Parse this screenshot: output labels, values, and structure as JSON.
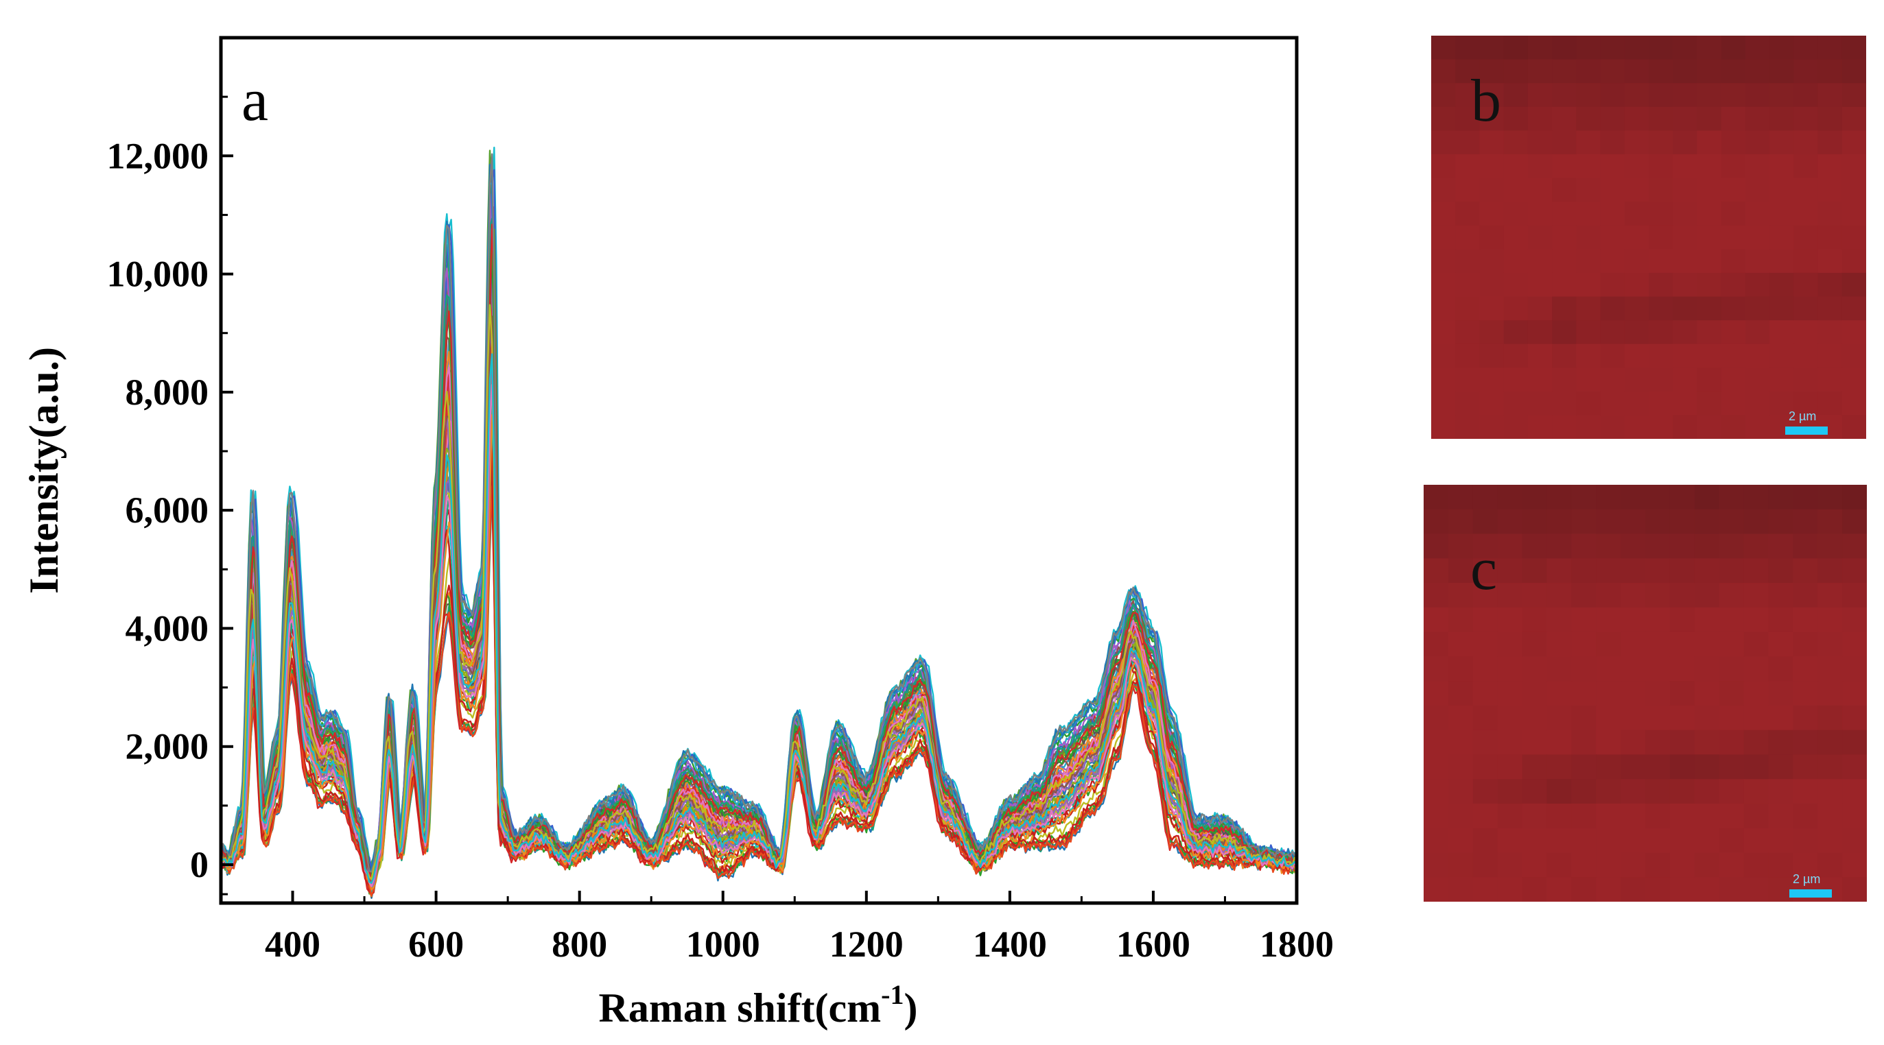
{
  "chart_data": {
    "type": "line",
    "panel_label": "a",
    "xlabel": "Raman shift(cm",
    "xlabel_sup": "-1",
    "xlabel_tail": ")",
    "ylabel": "Intensity(a.u.)",
    "xlim": [
      300,
      1800
    ],
    "ylim": [
      -650,
      14000
    ],
    "x_ticks": [
      400,
      600,
      800,
      1000,
      1200,
      1400,
      1600,
      1800
    ],
    "x_tick_labels": [
      "400",
      "600",
      "800",
      "1000",
      "1200",
      "1400",
      "1600",
      "1800"
    ],
    "y_ticks": [
      0,
      2000,
      4000,
      6000,
      8000,
      10000,
      12000
    ],
    "y_tick_labels": [
      "0",
      "2,000",
      "4,000",
      "6,000",
      "8,000",
      "10,000",
      "12,000"
    ],
    "grid": false,
    "legend": "none",
    "series_count": 70,
    "envelope": {
      "description_x": [
        300,
        310,
        330,
        345,
        360,
        380,
        398,
        420,
        440,
        455,
        472,
        490,
        510,
        520,
        535,
        550,
        568,
        585,
        600,
        617,
        635,
        650,
        665,
        678,
        690,
        710,
        745,
        780,
        840,
        860,
        900,
        950,
        1000,
        1045,
        1080,
        1103,
        1130,
        1160,
        1200,
        1240,
        1278,
        1310,
        1360,
        1400,
        1440,
        1470,
        1520,
        1550,
        1572,
        1600,
        1625,
        1660,
        1700,
        1750,
        1800
      ],
      "max_y": [
        350,
        150,
        1000,
        6400,
        1200,
        2300,
        6400,
        3400,
        2500,
        2600,
        2300,
        900,
        -100,
        400,
        2900,
        500,
        3000,
        700,
        6500,
        11100,
        4600,
        4300,
        5000,
        12300,
        1300,
        500,
        800,
        300,
        1100,
        1300,
        400,
        1900,
        1300,
        1000,
        200,
        2600,
        800,
        2400,
        1500,
        3000,
        3500,
        1500,
        300,
        1100,
        1500,
        2300,
        2800,
        4000,
        4700,
        4000,
        2600,
        800,
        800,
        250,
        150
      ],
      "mean_y": [
        200,
        50,
        500,
        4500,
        700,
        1400,
        4600,
        2300,
        1700,
        1800,
        1500,
        600,
        -200,
        200,
        2200,
        300,
        2200,
        400,
        4500,
        8000,
        3400,
        3300,
        3800,
        9000,
        800,
        300,
        500,
        150,
        600,
        800,
        200,
        900,
        200,
        500,
        50,
        2000,
        500,
        1400,
        1000,
        2300,
        2800,
        900,
        100,
        600,
        700,
        1000,
        1800,
        2900,
        3800,
        2600,
        700,
        200,
        150,
        100,
        50
      ],
      "min_y": [
        0,
        -100,
        200,
        2700,
        300,
        900,
        3200,
        1400,
        1000,
        1100,
        900,
        300,
        -500,
        0,
        1400,
        100,
        1400,
        200,
        3000,
        4200,
        2300,
        2200,
        2600,
        6400,
        400,
        100,
        300,
        0,
        300,
        400,
        0,
        300,
        -200,
        200,
        -100,
        1500,
        300,
        700,
        600,
        1500,
        1900,
        500,
        -100,
        300,
        300,
        300,
        900,
        1800,
        3000,
        1800,
        300,
        0,
        0,
        0,
        -100
      ]
    }
  },
  "map_panels": [
    {
      "label": "b",
      "scale_label": "2 µm",
      "colors": {
        "base": "#9b2428",
        "dark": "#6f1c1f"
      }
    },
    {
      "label": "c",
      "scale_label": "2 µm",
      "colors": {
        "base": "#9b2428",
        "dark": "#6f1c1f"
      }
    }
  ],
  "colors": {
    "axis": "#000000",
    "scalebar": "#1ec8f5",
    "series_palette": [
      "#1f77b4",
      "#ff7f0e",
      "#2ca02c",
      "#d62728",
      "#9467bd",
      "#8c564b",
      "#e377c2",
      "#7f7f7f",
      "#bcbd22",
      "#17becf",
      "#3a5fcd",
      "#e8491d",
      "#5aa02c",
      "#c71e1d",
      "#a55bc8",
      "#26a9c9",
      "#8fae1b",
      "#555555",
      "#f08a24",
      "#1aa37a"
    ]
  }
}
